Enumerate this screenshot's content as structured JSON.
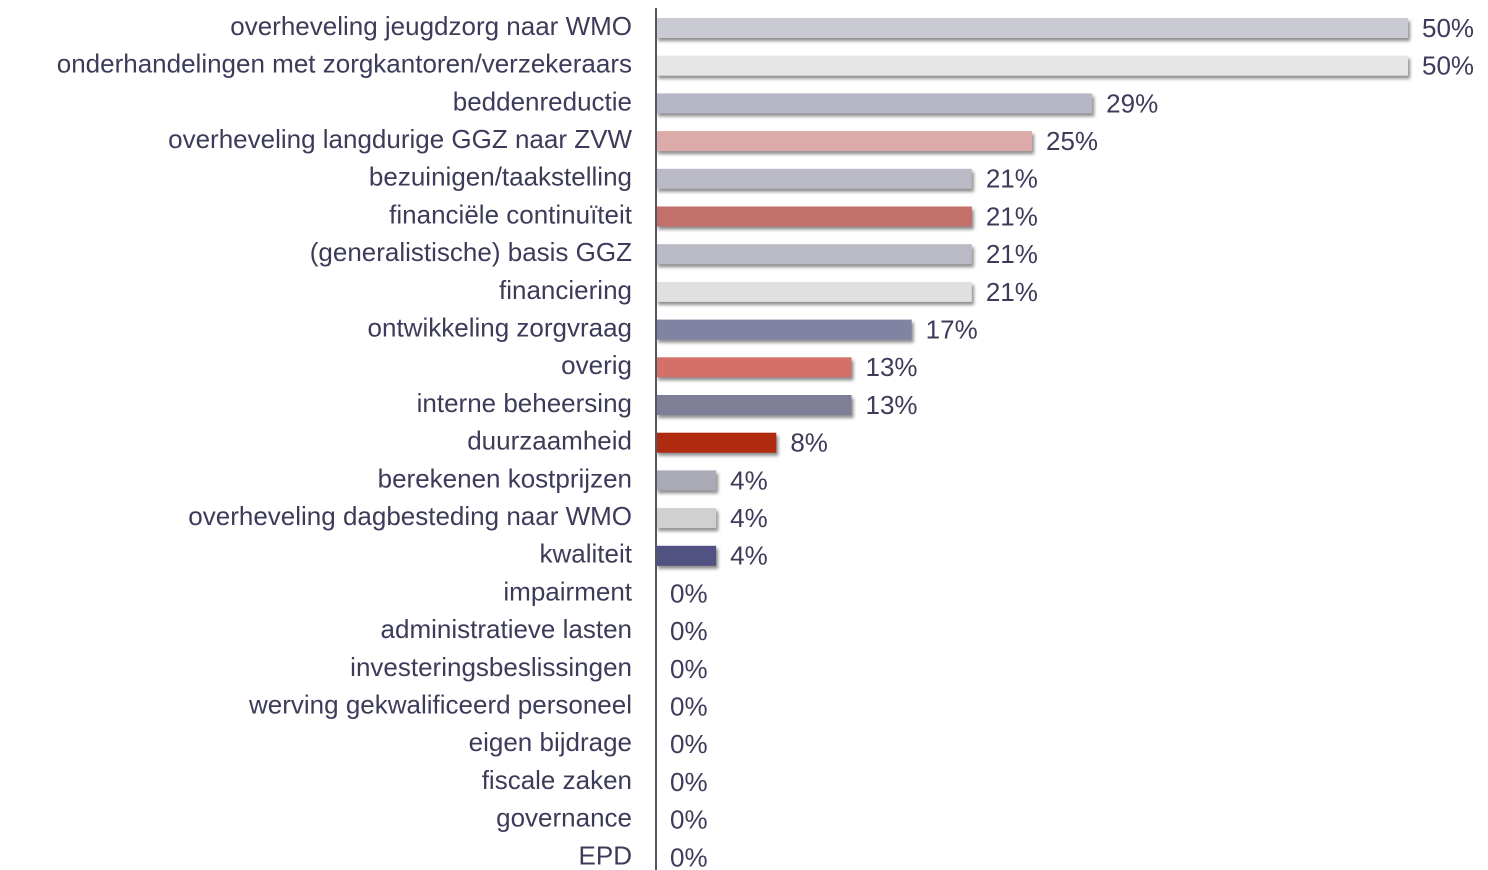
{
  "chart_data": {
    "type": "hbar",
    "categories": [
      "overheveling jeugdzorg naar WMO",
      "onderhandelingen met zorgkantoren/verzekeraars",
      "beddenreductie",
      "overheveling langdurige GGZ naar ZVW",
      "bezuinigen/taakstelling",
      "financiële continuïteit",
      "(generalistische) basis GGZ",
      "financiering",
      "ontwikkeling zorgvraag",
      "overig",
      "interne beheersing",
      "duurzaamheid",
      "berekenen kostprijzen",
      "overheveling dagbesteding naar WMO",
      "kwaliteit",
      "impairment",
      "administratieve lasten",
      "investeringsbeslissingen",
      "werving gekwalificeerd personeel",
      "eigen bijdrage",
      "fiscale zaken",
      "governance",
      "EPD"
    ],
    "values": [
      50,
      50,
      29,
      25,
      21,
      21,
      21,
      21,
      17,
      13,
      13,
      8,
      4,
      4,
      4,
      0,
      0,
      0,
      0,
      0,
      0,
      0,
      0
    ],
    "value_labels": [
      "50%",
      "50%",
      "29%",
      "25%",
      "21%",
      "21%",
      "21%",
      "21%",
      "17%",
      "13%",
      "13%",
      "8%",
      "4%",
      "4%",
      "4%",
      "0%",
      "0%",
      "0%",
      "0%",
      "0%",
      "0%",
      "0%",
      "0%"
    ],
    "colors": [
      "#cacad2",
      "#e6e6e6",
      "#b6b6c6",
      "#dcaaa8",
      "#babac6",
      "#c4706a",
      "#babac6",
      "#e0e0e0",
      "#8282a2",
      "#d4706a",
      "#7e7e96",
      "#b02a10",
      "#aaaab6",
      "#d0d0d0",
      "#525282",
      "#cacad2",
      "#cacad2",
      "#cacad2",
      "#cacad2",
      "#cacad2",
      "#cacad2",
      "#cacad2",
      "#cacad2"
    ],
    "xlim": [
      0,
      50
    ]
  }
}
